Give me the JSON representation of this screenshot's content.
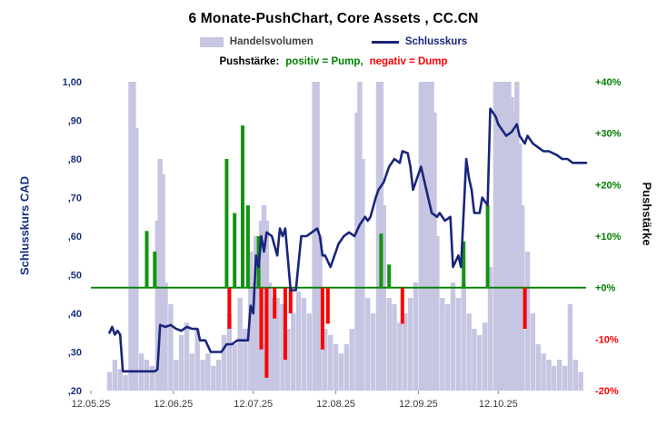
{
  "title": "6 Monate-PushChart,  Core Assets , CC.CN",
  "legend": {
    "volume": "Handelsvolumen",
    "close": "Schlusskurs",
    "push_prefix": "Pushstärke:",
    "pump": "positiv = Pump,",
    "dump": "negativ = Dump"
  },
  "colors": {
    "volume": "#c6c5e2",
    "close": "#19257a",
    "pump": "#129412",
    "pump_text": "#008000",
    "dump": "#ff0000",
    "zero": "#008000",
    "left_text": "#17307f",
    "x_text": "#3a3a3a"
  },
  "chart_data": {
    "type": "composite",
    "title": "6 Monate-PushChart,  Core Assets , CC.CN",
    "x_axis": {
      "tick_labels": [
        "12.05.25",
        "12.06.25",
        "12.07.25",
        "12.08.25",
        "12.09.25",
        "12.10.25"
      ],
      "tick_days": [
        0,
        31,
        61,
        92,
        123,
        153
      ],
      "day_span": 186
    },
    "left_axis": {
      "label": "Schlusskurs CAD",
      "min": 0.2,
      "max": 1.0,
      "ticks": [
        {
          "v": 1.0,
          "label": "1,00"
        },
        {
          "v": 0.9,
          "label": ",90"
        },
        {
          "v": 0.8,
          "label": ",80"
        },
        {
          "v": 0.7,
          "label": ",70"
        },
        {
          "v": 0.6,
          "label": ",60"
        },
        {
          "v": 0.5,
          "label": ",50"
        },
        {
          "v": 0.4,
          "label": ",40"
        },
        {
          "v": 0.3,
          "label": ",30"
        },
        {
          "v": 0.2,
          "label": ",20"
        }
      ]
    },
    "right_axis": {
      "label": "Pushstärke",
      "min": -20,
      "max": 40,
      "ticks": [
        {
          "v": 40,
          "label": "+40%"
        },
        {
          "v": 30,
          "label": "+30%"
        },
        {
          "v": 20,
          "label": "+20%"
        },
        {
          "v": 10,
          "label": "+10%"
        },
        {
          "v": 0,
          "label": "+0%"
        },
        {
          "v": -10,
          "label": "-10%"
        },
        {
          "v": -20,
          "label": "-20%"
        }
      ]
    },
    "series": {
      "volume": {
        "name": "Handelsvolumen",
        "points": [
          [
            7,
            0.06
          ],
          [
            9,
            0.1
          ],
          [
            11,
            0.07
          ],
          [
            13,
            0.05
          ],
          [
            15,
            1
          ],
          [
            16,
            1
          ],
          [
            17,
            0.85
          ],
          [
            19,
            0.12
          ],
          [
            21,
            0.1
          ],
          [
            23,
            0.08
          ],
          [
            25,
            0.55
          ],
          [
            26,
            0.75
          ],
          [
            27,
            0.7
          ],
          [
            28,
            0.35
          ],
          [
            30,
            0.28
          ],
          [
            32,
            0.1
          ],
          [
            34,
            0.18
          ],
          [
            36,
            0.22
          ],
          [
            38,
            0.12
          ],
          [
            40,
            0.2
          ],
          [
            42,
            0.1
          ],
          [
            44,
            0.12
          ],
          [
            46,
            0.08
          ],
          [
            48,
            0.1
          ],
          [
            50,
            0.18
          ],
          [
            52,
            0.25
          ],
          [
            54,
            0.15
          ],
          [
            56,
            0.3
          ],
          [
            58,
            0.2
          ],
          [
            60,
            0.45
          ],
          [
            61,
            0.35
          ],
          [
            62,
            0.5
          ],
          [
            63,
            0.4
          ],
          [
            64,
            0.55
          ],
          [
            65,
            0.6
          ],
          [
            66,
            0.55
          ],
          [
            67,
            0.35
          ],
          [
            68,
            0.3
          ],
          [
            69,
            0.25
          ],
          [
            70,
            0.3
          ],
          [
            72,
            0.28
          ],
          [
            74,
            0.2
          ],
          [
            76,
            0.25
          ],
          [
            78,
            0.32
          ],
          [
            80,
            0.3
          ],
          [
            82,
            0.25
          ],
          [
            84,
            1
          ],
          [
            85,
            1
          ],
          [
            86,
            0.5
          ],
          [
            88,
            0.2
          ],
          [
            90,
            0.18
          ],
          [
            92,
            0.15
          ],
          [
            94,
            0.12
          ],
          [
            96,
            0.15
          ],
          [
            98,
            0.2
          ],
          [
            100,
            0.9
          ],
          [
            101,
            1
          ],
          [
            102,
            0.75
          ],
          [
            104,
            0.3
          ],
          [
            106,
            0.25
          ],
          [
            108,
            1
          ],
          [
            109,
            1
          ],
          [
            110,
            0.6
          ],
          [
            112,
            0.3
          ],
          [
            114,
            0.28
          ],
          [
            116,
            0.22
          ],
          [
            118,
            0.25
          ],
          [
            120,
            0.3
          ],
          [
            122,
            0.35
          ],
          [
            124,
            1
          ],
          [
            125,
            1
          ],
          [
            126,
            1
          ],
          [
            127,
            1
          ],
          [
            128,
            1
          ],
          [
            129,
            0.9
          ],
          [
            130,
            0.5
          ],
          [
            132,
            0.3
          ],
          [
            134,
            0.28
          ],
          [
            136,
            0.35
          ],
          [
            138,
            0.3
          ],
          [
            140,
            0.35
          ],
          [
            142,
            0.25
          ],
          [
            144,
            0.2
          ],
          [
            146,
            0.18
          ],
          [
            148,
            0.22
          ],
          [
            150,
            0.4
          ],
          [
            152,
            1
          ],
          [
            153,
            1
          ],
          [
            154,
            1
          ],
          [
            155,
            1
          ],
          [
            156,
            1
          ],
          [
            157,
            1
          ],
          [
            158,
            0.95
          ],
          [
            159,
            0.9
          ],
          [
            160,
            1
          ],
          [
            161,
            0.8
          ],
          [
            162,
            0.6
          ],
          [
            164,
            0.45
          ],
          [
            166,
            0.25
          ],
          [
            168,
            0.15
          ],
          [
            170,
            0.12
          ],
          [
            172,
            0.1
          ],
          [
            174,
            0.08
          ],
          [
            176,
            0.1
          ],
          [
            178,
            0.08
          ],
          [
            180,
            0.28
          ],
          [
            182,
            0.1
          ],
          [
            184,
            0.06
          ]
        ]
      },
      "close": {
        "name": "Schlusskurs",
        "points": [
          [
            7,
            0.35
          ],
          [
            8,
            0.365
          ],
          [
            9,
            0.345
          ],
          [
            10,
            0.355
          ],
          [
            11,
            0.345
          ],
          [
            12,
            0.25
          ],
          [
            15,
            0.25
          ],
          [
            18,
            0.25
          ],
          [
            21,
            0.25
          ],
          [
            24,
            0.25
          ],
          [
            25,
            0.255
          ],
          [
            26,
            0.37
          ],
          [
            28,
            0.365
          ],
          [
            30,
            0.37
          ],
          [
            32,
            0.36
          ],
          [
            34,
            0.355
          ],
          [
            36,
            0.365
          ],
          [
            38,
            0.36
          ],
          [
            40,
            0.36
          ],
          [
            41,
            0.33
          ],
          [
            43,
            0.33
          ],
          [
            45,
            0.3
          ],
          [
            47,
            0.3
          ],
          [
            49,
            0.3
          ],
          [
            51,
            0.32
          ],
          [
            53,
            0.32
          ],
          [
            55,
            0.33
          ],
          [
            57,
            0.33
          ],
          [
            59,
            0.33
          ],
          [
            60,
            0.42
          ],
          [
            61,
            0.4
          ],
          [
            62,
            0.55
          ],
          [
            63,
            0.52
          ],
          [
            64,
            0.6
          ],
          [
            65,
            0.56
          ],
          [
            66,
            0.61
          ],
          [
            68,
            0.6
          ],
          [
            70,
            0.55
          ],
          [
            71,
            0.62
          ],
          [
            72,
            0.6
          ],
          [
            73,
            0.62
          ],
          [
            75,
            0.46
          ],
          [
            77,
            0.46
          ],
          [
            79,
            0.6
          ],
          [
            81,
            0.6
          ],
          [
            83,
            0.61
          ],
          [
            85,
            0.62
          ],
          [
            86,
            0.6
          ],
          [
            87,
            0.55
          ],
          [
            88,
            0.55
          ],
          [
            90,
            0.52
          ],
          [
            92,
            0.56
          ],
          [
            93,
            0.58
          ],
          [
            95,
            0.6
          ],
          [
            97,
            0.61
          ],
          [
            99,
            0.6
          ],
          [
            101,
            0.63
          ],
          [
            103,
            0.65
          ],
          [
            104,
            0.64
          ],
          [
            105,
            0.65
          ],
          [
            107,
            0.7
          ],
          [
            108,
            0.72
          ],
          [
            110,
            0.74
          ],
          [
            112,
            0.78
          ],
          [
            114,
            0.8
          ],
          [
            116,
            0.79
          ],
          [
            117,
            0.82
          ],
          [
            119,
            0.815
          ],
          [
            120,
            0.78
          ],
          [
            121,
            0.72
          ],
          [
            123,
            0.76
          ],
          [
            124,
            0.78
          ],
          [
            126,
            0.72
          ],
          [
            128,
            0.66
          ],
          [
            130,
            0.65
          ],
          [
            131,
            0.66
          ],
          [
            133,
            0.64
          ],
          [
            135,
            0.65
          ],
          [
            136,
            0.52
          ],
          [
            138,
            0.55
          ],
          [
            139,
            0.52
          ],
          [
            141,
            0.8
          ],
          [
            142,
            0.75
          ],
          [
            143,
            0.72
          ],
          [
            144,
            0.66
          ],
          [
            146,
            0.66
          ],
          [
            147,
            0.7
          ],
          [
            149,
            0.68
          ],
          [
            150,
            0.93
          ],
          [
            152,
            0.91
          ],
          [
            153,
            0.89
          ],
          [
            154,
            0.88
          ],
          [
            156,
            0.86
          ],
          [
            158,
            0.87
          ],
          [
            160,
            0.89
          ],
          [
            161,
            0.86
          ],
          [
            163,
            0.84
          ],
          [
            164,
            0.86
          ],
          [
            166,
            0.84
          ],
          [
            168,
            0.83
          ],
          [
            170,
            0.82
          ],
          [
            172,
            0.82
          ],
          [
            175,
            0.81
          ],
          [
            177,
            0.8
          ],
          [
            179,
            0.8
          ],
          [
            181,
            0.79
          ],
          [
            186,
            0.79
          ]
        ]
      },
      "push": {
        "name": "Pushstärke",
        "points": [
          [
            21,
            11
          ],
          [
            24,
            7
          ],
          [
            51,
            25
          ],
          [
            52,
            -8
          ],
          [
            54,
            14.5
          ],
          [
            57,
            31.5
          ],
          [
            59,
            16
          ],
          [
            63,
            10
          ],
          [
            64,
            -12
          ],
          [
            66,
            -17.5
          ],
          [
            69,
            -6
          ],
          [
            73,
            -14
          ],
          [
            75,
            -5
          ],
          [
            87,
            -12
          ],
          [
            89,
            -7
          ],
          [
            109,
            10.5
          ],
          [
            112,
            4.5
          ],
          [
            117,
            -7
          ],
          [
            140,
            9
          ],
          [
            149,
            16
          ],
          [
            163,
            -8
          ]
        ]
      }
    }
  }
}
